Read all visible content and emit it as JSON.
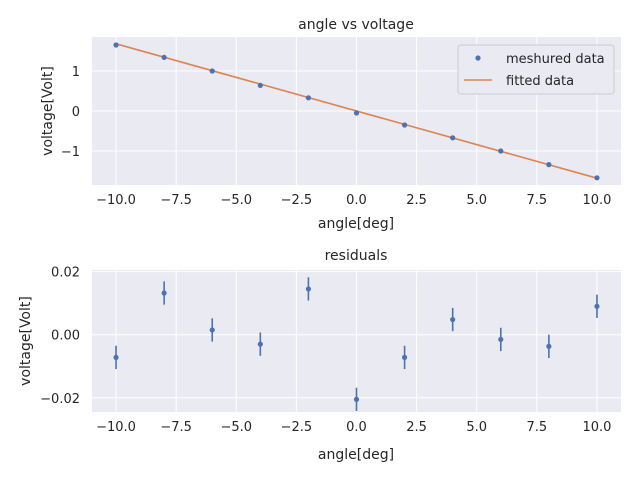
{
  "colors": {
    "points": "#4c72b0",
    "fit_line": "#dd8452",
    "plot_background": "#eaeaf2",
    "grid": "#ffffff"
  },
  "chart_data": [
    {
      "type": "scatter",
      "title": "angle vs voltage",
      "xlabel": "angle[deg]",
      "ylabel": "voltage[Volt]",
      "xlim": [
        -11,
        11
      ],
      "ylim": [
        -1.85,
        1.85
      ],
      "xticks": [
        -10,
        -7.5,
        -5,
        -2.5,
        0,
        2.5,
        5,
        7.5,
        10
      ],
      "xtick_labels": [
        "−10.0",
        "−7.5",
        "−5.0",
        "−2.5",
        "0.0",
        "2.5",
        "5.0",
        "7.5",
        "10.0"
      ],
      "yticks": [
        -1,
        0,
        1
      ],
      "ytick_labels": [
        "−1",
        "0",
        "1"
      ],
      "grid": true,
      "legend": "top-right",
      "series": [
        {
          "name": "meshured data",
          "kind": "points",
          "x": [
            -10,
            -8,
            -6,
            -4,
            -2,
            0,
            2,
            4,
            6,
            8,
            10
          ],
          "y": [
            1.65,
            1.34,
            1.0,
            0.64,
            0.33,
            -0.05,
            -0.35,
            -0.67,
            -1.0,
            -1.34,
            -1.67
          ]
        },
        {
          "name": "fitted data",
          "kind": "line",
          "x": [
            -10,
            10
          ],
          "y": [
            1.68,
            -1.68
          ]
        }
      ]
    },
    {
      "type": "scatter",
      "title": "residuals",
      "xlabel": "angle[deg]",
      "ylabel": "voltage[Volt]",
      "xlim": [
        -11,
        11
      ],
      "ylim": [
        -0.0245,
        0.0205
      ],
      "xticks": [
        -10,
        -7.5,
        -5,
        -2.5,
        0,
        2.5,
        5,
        7.5,
        10
      ],
      "xtick_labels": [
        "−10.0",
        "−7.5",
        "−5.0",
        "−2.5",
        "0.0",
        "2.5",
        "5.0",
        "7.5",
        "10.0"
      ],
      "yticks": [
        -0.02,
        0,
        0.02
      ],
      "ytick_labels": [
        "−0.02",
        "0.00",
        "0.02"
      ],
      "grid": true,
      "series": [
        {
          "kind": "errorbar",
          "x": [
            -10,
            -8,
            -6,
            -4,
            -2,
            0,
            2,
            4,
            6,
            8,
            10
          ],
          "y": [
            -0.0072,
            0.0132,
            0.0015,
            -0.003,
            0.0145,
            -0.0205,
            -0.0072,
            0.0048,
            -0.0015,
            -0.0037,
            0.009
          ],
          "err": [
            0.0037,
            0.0037,
            0.0037,
            0.0037,
            0.0037,
            0.0037,
            0.0037,
            0.0037,
            0.0037,
            0.0037,
            0.0037
          ]
        }
      ]
    }
  ]
}
